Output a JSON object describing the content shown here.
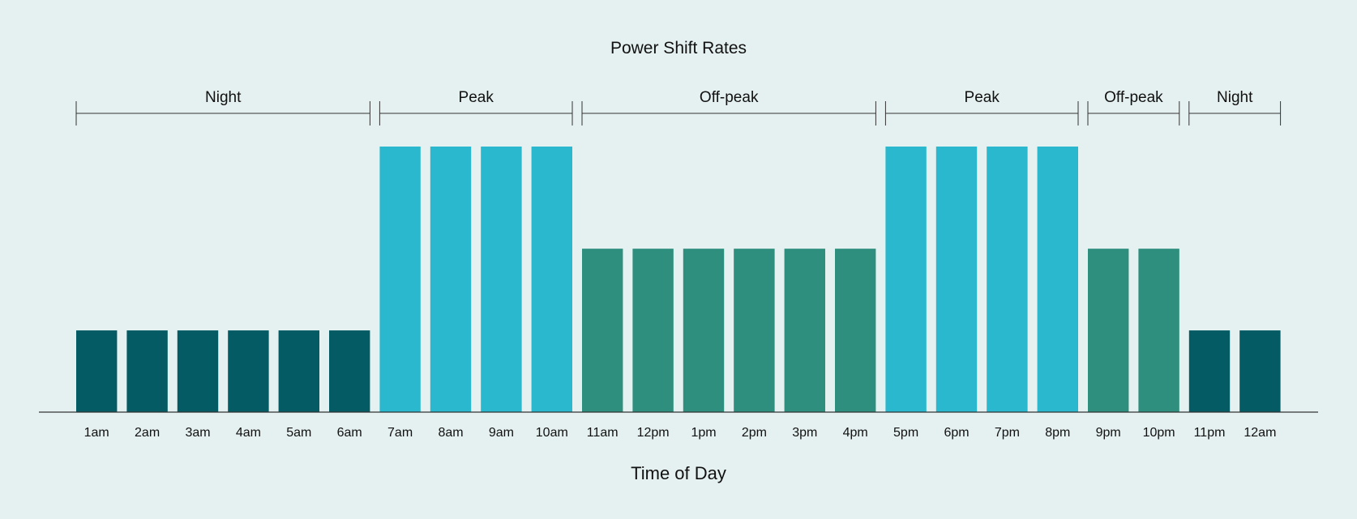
{
  "chart_data": {
    "type": "bar",
    "title": "Power Shift Rates",
    "xlabel": "Time of Day",
    "ylabel": "",
    "categories": [
      "1am",
      "2am",
      "3am",
      "4am",
      "5am",
      "6am",
      "7am",
      "8am",
      "9am",
      "10am",
      "11am",
      "12pm",
      "1pm",
      "2pm",
      "3pm",
      "4pm",
      "5pm",
      "6pm",
      "7pm",
      "8pm",
      "9pm",
      "10pm",
      "11pm",
      "12am"
    ],
    "values": [
      1,
      1,
      1,
      1,
      1,
      1,
      3.25,
      3.25,
      3.25,
      3.25,
      2,
      2,
      2,
      2,
      2,
      2,
      3.25,
      3.25,
      3.25,
      3.25,
      2,
      2,
      1,
      1
    ],
    "bar_rates": [
      "night",
      "night",
      "night",
      "night",
      "night",
      "night",
      "peak",
      "peak",
      "peak",
      "peak",
      "offpeak",
      "offpeak",
      "offpeak",
      "offpeak",
      "offpeak",
      "offpeak",
      "peak",
      "peak",
      "peak",
      "peak",
      "offpeak",
      "offpeak",
      "night",
      "night"
    ],
    "ylim": [
      0,
      3.25
    ],
    "grid": false,
    "periods": [
      {
        "label": "Night",
        "start": 0,
        "end": 5
      },
      {
        "label": "Peak",
        "start": 6,
        "end": 9
      },
      {
        "label": "Off-peak",
        "start": 10,
        "end": 15
      },
      {
        "label": "Peak",
        "start": 16,
        "end": 19
      },
      {
        "label": "Off-peak",
        "start": 20,
        "end": 21
      },
      {
        "label": "Night",
        "start": 22,
        "end": 23
      }
    ],
    "colors": {
      "night": "#045b63",
      "peak": "#29b8ce",
      "offpeak": "#2e8f7e",
      "axis": "#333333",
      "background": "#e5f0f0"
    }
  }
}
